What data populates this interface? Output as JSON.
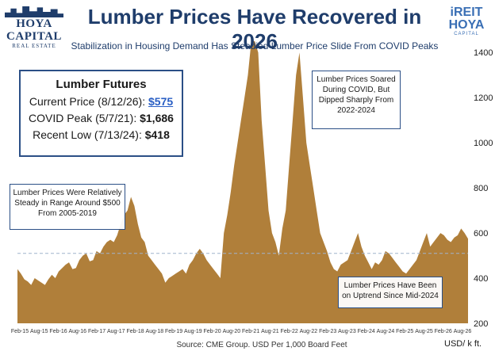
{
  "header": {
    "title": "Lumber Prices Have Recovered in 2026",
    "subtitle": "Stabilization in Housing Demand Has Steadied Lumber Price Slide From COVID Peaks",
    "logo_left": "HOYA CAPITAL",
    "logo_left_sub": "REAL ESTATE",
    "logo_right_line1": "iREIT",
    "logo_right_line2": "HOYA",
    "logo_right_line3": "CAPITAL"
  },
  "futures_box": {
    "heading": "Lumber Futures",
    "current_label": "Current Price (8/12/26):",
    "current_value": "$575",
    "peak_label": "COVID Peak (5/7/21):",
    "peak_value": "$1,686",
    "low_label": "Recent Low (7/13/24):",
    "low_value": "$418"
  },
  "annotations": {
    "covid": "Lumber Prices Soared During COVID, But Dipped Sharply From 2022-2024",
    "steady": "Lumber Prices Were Relatively Steady in Range Around $500 From 2005-2019",
    "uptrend": "Lumber Prices Have Been on Uptrend Since Mid-2024"
  },
  "footer": {
    "source": "Source: CME Group. USD Per 1,000 Board Feet",
    "unit": "USD/ k ft."
  },
  "colors": {
    "area_fill": "#b07f3a",
    "title": "#1f3d6b",
    "reference_line": "#9fb3cc"
  },
  "chart_data": {
    "type": "area",
    "title": "Lumber Prices Have Recovered in 2026",
    "subtitle": "Stabilization in Housing Demand Has Steadied Lumber Price Slide From COVID Peaks",
    "ylabel": "USD/ k ft.",
    "ylim": [
      200,
      1450
    ],
    "y_ticks": [
      200,
      400,
      600,
      800,
      1000,
      1200,
      1400
    ],
    "x_tick_labels": [
      "Feb-15",
      "Aug-15",
      "Feb-16",
      "Aug-16",
      "Feb-17",
      "Aug-17",
      "Feb-18",
      "Aug-18",
      "Feb-19",
      "Aug-19",
      "Feb-20",
      "Aug-20",
      "Feb-21",
      "Aug-21",
      "Feb-22",
      "Aug-22",
      "Feb-23",
      "Aug-23",
      "Feb-24",
      "Aug-24",
      "Feb-25",
      "Aug-25",
      "Feb-26",
      "Aug-26"
    ],
    "reference_value": 510,
    "grid": false,
    "series": [
      {
        "values": [
          440,
          420,
          395,
          385,
          370,
          400,
          390,
          380,
          370,
          395,
          415,
          400,
          430,
          445,
          460,
          470,
          440,
          445,
          480,
          500,
          510,
          475,
          480,
          520,
          510,
          540,
          560,
          570,
          560,
          590,
          640,
          680,
          700,
          760,
          720,
          640,
          580,
          560,
          500,
          480,
          460,
          440,
          420,
          380,
          400,
          410,
          420,
          430,
          440,
          420,
          460,
          480,
          510,
          530,
          510,
          480,
          460,
          440,
          420,
          400,
          600,
          680,
          780,
          900,
          1000,
          1100,
          1200,
          1300,
          1500,
          1686,
          1400,
          1100,
          900,
          700,
          600,
          560,
          500,
          620,
          700,
          900,
          1100,
          1300,
          1400,
          1200,
          1000,
          900,
          800,
          700,
          600,
          560,
          520,
          470,
          440,
          430,
          460,
          470,
          480,
          520,
          560,
          600,
          540,
          500,
          470,
          440,
          470,
          460,
          480,
          520,
          510,
          490,
          470,
          450,
          430,
          420,
          440,
          460,
          480,
          520,
          560,
          600,
          540,
          560,
          580,
          600,
          590,
          570,
          560,
          580,
          590,
          620,
          600,
          575
        ]
      }
    ]
  }
}
